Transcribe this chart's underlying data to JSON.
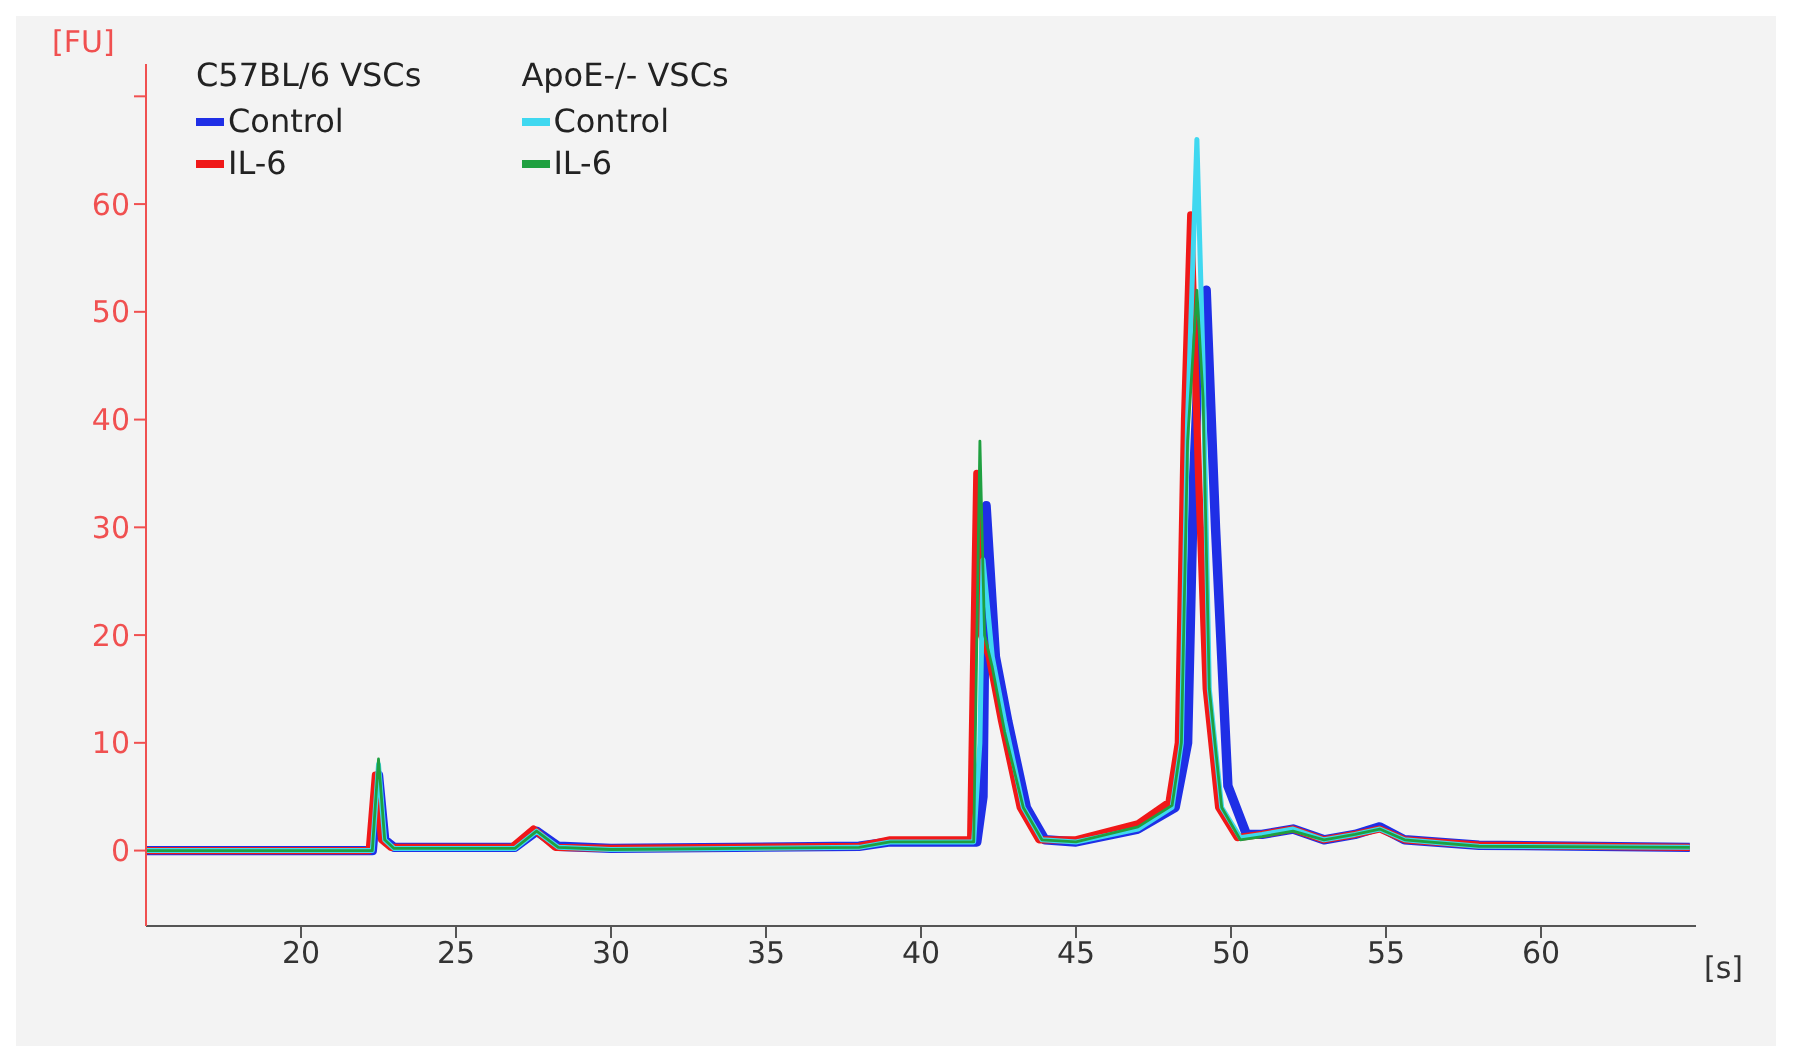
{
  "chart_data": {
    "type": "line",
    "xlabel": "[s]",
    "ylabel": "[FU]",
    "annotations": [
      "C57BL/6 VSCs",
      "ApoE-/- VSCs"
    ],
    "xlim": [
      15,
      65
    ],
    "xticks": [
      20,
      25,
      30,
      35,
      40,
      45,
      50,
      55,
      60
    ],
    "ylim": [
      -7,
      73
    ],
    "yticks": [
      0,
      10,
      20,
      30,
      40,
      50,
      60,
      {
        "value": 70,
        "label": null
      }
    ],
    "legend": "top left",
    "series": [
      {
        "name": "Control",
        "color": "#1f2fe6",
        "x": [
          15,
          22.3,
          22.5,
          22.7,
          23,
          26.9,
          27.6,
          28.3,
          30,
          38,
          39,
          41.8,
          42,
          42.1,
          42.4,
          42.8,
          43.4,
          44,
          45,
          47,
          48.2,
          48.6,
          48.8,
          49,
          49.2,
          49.5,
          49.9,
          50.5,
          51,
          52,
          53,
          54,
          54.8,
          55.6,
          58,
          64.8
        ],
        "values": [
          0,
          0,
          7,
          1,
          0.3,
          0.3,
          1.8,
          0.4,
          0.2,
          0.4,
          0.8,
          0.8,
          5,
          32,
          18,
          12,
          4,
          1,
          0.8,
          2,
          4,
          10,
          35,
          48,
          52,
          30,
          6,
          1.5,
          1.5,
          2,
          1,
          1.5,
          2.2,
          1,
          0.5,
          0.3
        ]
      },
      {
        "name": "IL-6",
        "color": "#f01818",
        "x": [
          15,
          22.2,
          22.4,
          22.6,
          22.9,
          26.8,
          27.5,
          28.2,
          30,
          38,
          39,
          41.6,
          41.8,
          41.95,
          42.2,
          42.6,
          43.2,
          43.8,
          45,
          47,
          48,
          48.3,
          48.5,
          48.7,
          48.95,
          49.2,
          49.6,
          50.2,
          51,
          52,
          53,
          54,
          54.8,
          55.6,
          58,
          64.8
        ],
        "values": [
          0,
          0,
          7,
          1,
          0.3,
          0.3,
          2,
          0.3,
          0.2,
          0.4,
          1,
          1,
          35,
          20,
          18,
          12,
          4,
          1,
          1,
          2.5,
          4.5,
          10,
          40,
          59,
          35,
          15,
          4,
          1.2,
          1.5,
          2,
          1,
          1.5,
          2,
          1,
          0.5,
          0.3
        ]
      },
      {
        "name": "Control",
        "color": "#3fd8f0",
        "x": [
          15,
          22.3,
          22.5,
          22.7,
          23,
          26.9,
          27.6,
          28.3,
          30,
          38,
          39,
          41.7,
          41.9,
          42,
          42.3,
          42.7,
          43.3,
          43.9,
          45,
          47,
          48.1,
          48.4,
          48.6,
          48.9,
          49.1,
          49.3,
          49.7,
          50.3,
          51,
          52,
          53,
          54,
          54.8,
          55.6,
          58,
          64.8
        ],
        "values": [
          0,
          0,
          8,
          1,
          0.2,
          0.2,
          1.8,
          0.3,
          0.1,
          0.3,
          0.8,
          0.8,
          10,
          27,
          18,
          12,
          4,
          1,
          0.8,
          2,
          4,
          10,
          40,
          66,
          45,
          15,
          4,
          1.2,
          1.5,
          2,
          1,
          1.5,
          2,
          1,
          0.4,
          0.3
        ]
      },
      {
        "name": "IL-6",
        "color": "#1fa040",
        "x": [
          15,
          22.3,
          22.5,
          22.7,
          23,
          26.9,
          27.6,
          28.3,
          30,
          38,
          39,
          41.7,
          41.9,
          42.05,
          42.3,
          42.7,
          43.3,
          43.9,
          45,
          47,
          48.1,
          48.4,
          48.6,
          48.9,
          49.1,
          49.3,
          49.7,
          50.3,
          51,
          52,
          53,
          54,
          54.8,
          55.6,
          58,
          64.8
        ],
        "values": [
          0,
          0,
          8.5,
          1,
          0.2,
          0.2,
          1.8,
          0.3,
          0.1,
          0.3,
          0.8,
          0.8,
          38,
          20,
          17,
          11,
          4,
          1,
          0.8,
          2.2,
          4.2,
          10,
          38,
          52,
          42,
          15,
          4,
          1,
          1.3,
          1.8,
          1,
          1.5,
          2,
          1,
          0.4,
          0.3
        ]
      }
    ]
  }
}
